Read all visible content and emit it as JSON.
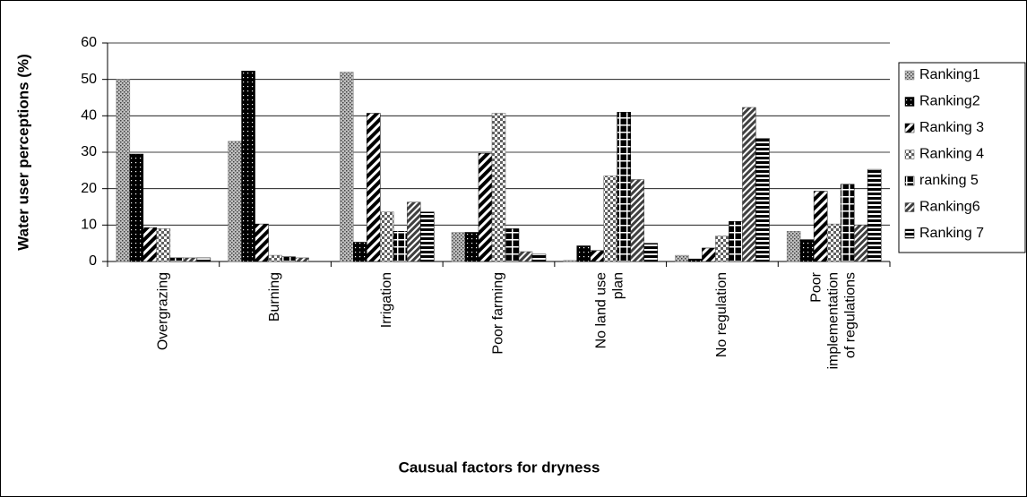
{
  "chart_data": {
    "type": "bar",
    "y_label": "Water user perceptions (%)",
    "x_label": "Causual factors for dryness",
    "categories": [
      "Overgrazing",
      "Burning",
      "Irrigation",
      "Poor farming",
      "No land use plan",
      "No regulation",
      "Poor implementation of regulations"
    ],
    "series": [
      {
        "name": "Ranking1",
        "color": "#808080",
        "values": [
          50,
          33,
          52,
          8,
          0.3,
          1.7,
          8.3
        ]
      },
      {
        "name": "Ranking2",
        "color": "#000000",
        "values": [
          29.5,
          52.3,
          5.3,
          8,
          4.3,
          0.7,
          6
        ]
      },
      {
        "name": "Ranking 3",
        "color": "#000000",
        "values": [
          9.3,
          10.3,
          40.7,
          29.7,
          3,
          3.7,
          19.3
        ]
      },
      {
        "name": "Ranking 4",
        "color": "#606060",
        "values": [
          9,
          1.7,
          13.6,
          40.7,
          23.5,
          7,
          10.3
        ]
      },
      {
        "name": "ranking 5",
        "color": "#000000",
        "values": [
          1,
          1.3,
          8.3,
          9,
          41,
          11,
          21.2
        ]
      },
      {
        "name": "Ranking6",
        "color": "#404040",
        "values": [
          1,
          1,
          16.3,
          2.7,
          22.5,
          42.3,
          10
        ]
      },
      {
        "name": "Ranking 7",
        "color": "#000000",
        "values": [
          1,
          0,
          13.6,
          2,
          5,
          33.8,
          25.3
        ]
      }
    ],
    "ylim": [
      0,
      60
    ],
    "yticks": [
      0,
      10,
      20,
      30,
      40,
      50,
      60
    ],
    "grid": true
  }
}
